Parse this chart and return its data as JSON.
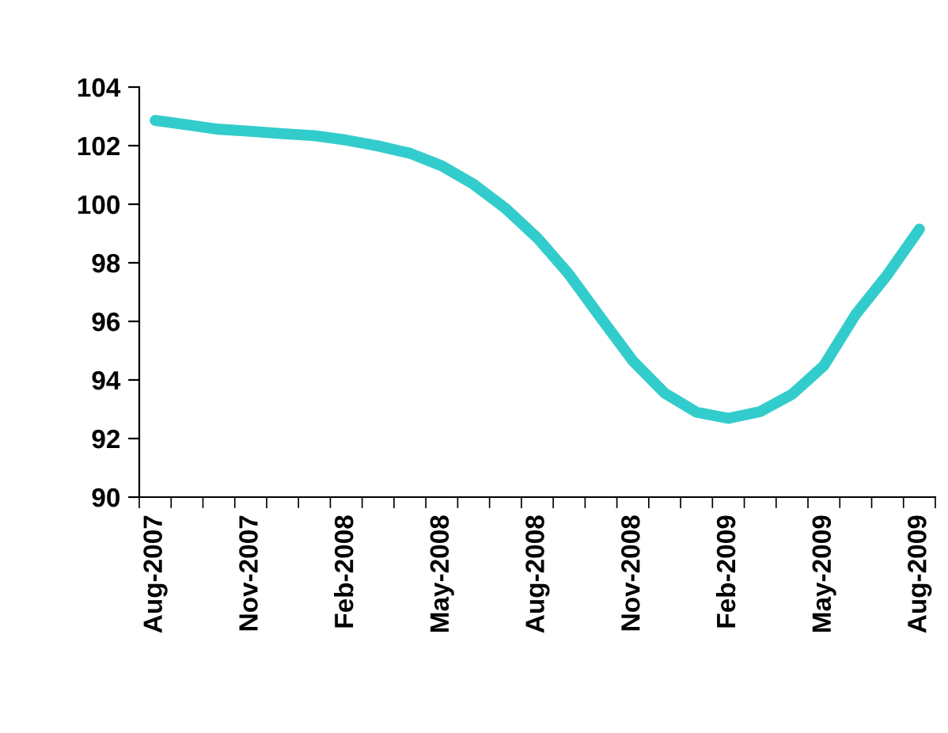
{
  "chart_data": {
    "type": "line",
    "categories": [
      "Aug-2007",
      null,
      null,
      "Nov-2007",
      null,
      null,
      "Feb-2008",
      null,
      null,
      "May-2008",
      null,
      null,
      "Aug-2008",
      null,
      null,
      "Nov-2008",
      null,
      null,
      "Feb-2009",
      null,
      null,
      "May-2009",
      null,
      null,
      "Aug-2009"
    ],
    "series": [
      {
        "color": "#33cccc",
        "values": [
          102.86,
          102.71,
          102.56,
          102.49,
          102.41,
          102.34,
          102.19,
          101.99,
          101.74,
          101.31,
          100.68,
          99.86,
          98.85,
          97.6,
          96.11,
          94.65,
          93.55,
          92.9,
          92.69,
          92.92,
          93.51,
          94.49,
          96.24,
          97.6,
          99.15
        ]
      }
    ],
    "ylim": [
      90,
      104
    ],
    "yticks": [
      90,
      92,
      94,
      96,
      98,
      100,
      102,
      104
    ],
    "grid": false,
    "marker": "none",
    "line_style": "solid"
  }
}
